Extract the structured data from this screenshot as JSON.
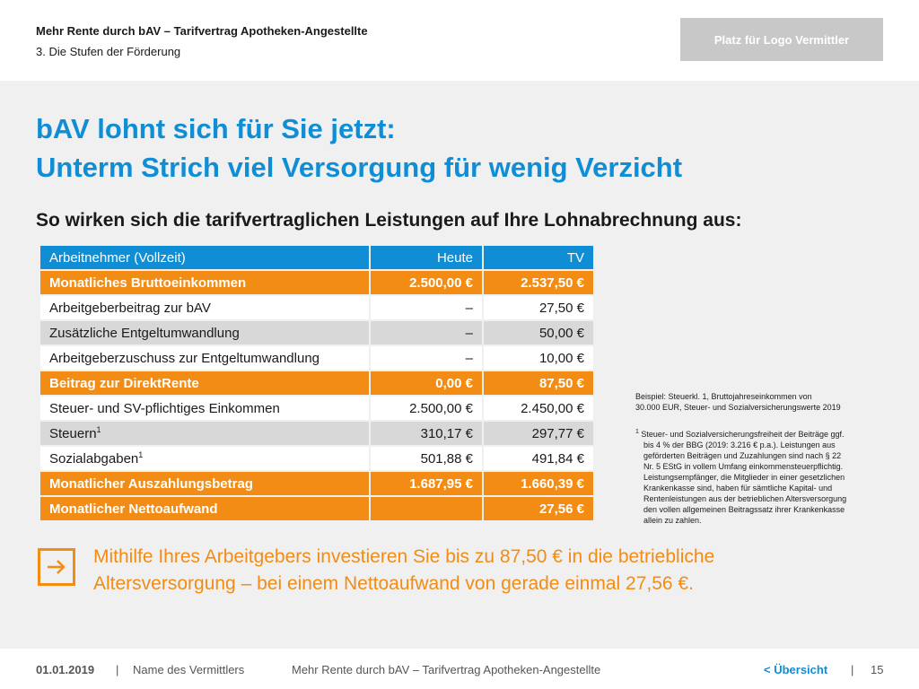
{
  "header": {
    "title": "Mehr Rente durch bAV – Tarifvertrag Apotheken-Angestellte",
    "subtitle": "3. Die Stufen der Förderung",
    "logo_placeholder": "Platz für Logo Vermittler"
  },
  "headline": {
    "line1": "bAV lohnt sich für Sie jetzt:",
    "line2": "Unterm Strich viel Versorgung für wenig Verzicht"
  },
  "subheading": "So wirken sich die tarifvertraglichen Leistungen auf Ihre Lohnabrechnung aus:",
  "table": {
    "header": [
      "Arbeitnehmer (Vollzeit)",
      "Heute",
      "TV"
    ],
    "rows": [
      {
        "label": "Monatliches Bruttoeinkommen",
        "sup": "",
        "heute": "2.500,00 €",
        "tv": "2.537,50 €",
        "style": "orange"
      },
      {
        "label": "Arbeitgeberbeitrag zur bAV",
        "sup": "",
        "heute": "–",
        "tv": "27,50 €",
        "style": "white"
      },
      {
        "label": "Zusätzliche Entgeltumwandlung",
        "sup": "",
        "heute": "–",
        "tv": "50,00 €",
        "style": "grey"
      },
      {
        "label": "Arbeitgeberzuschuss zur Entgeltumwandlung",
        "sup": "",
        "heute": "–",
        "tv": "10,00 €",
        "style": "white"
      },
      {
        "label": "Beitrag zur DirektRente",
        "sup": "",
        "heute": "0,00 €",
        "tv": "87,50 €",
        "style": "orange"
      },
      {
        "label": "Steuer- und SV-pflichtiges Einkommen",
        "sup": "",
        "heute": "2.500,00 €",
        "tv": "2.450,00 €",
        "style": "white"
      },
      {
        "label": "Steuern",
        "sup": "1",
        "heute": "310,17 €",
        "tv": "297,77 €",
        "style": "grey"
      },
      {
        "label": "Sozialabgaben",
        "sup": "1",
        "heute": "501,88 €",
        "tv": "491,84 €",
        "style": "white"
      },
      {
        "label": "Monatlicher Auszahlungsbetrag",
        "sup": "",
        "heute": "1.687,95 €",
        "tv": "1.660,39 €",
        "style": "orange"
      },
      {
        "label": "Monatlicher Nettoaufwand",
        "sup": "",
        "heute": "",
        "tv": "27,56 €",
        "style": "orange"
      }
    ]
  },
  "notes": {
    "example_line1": "Beispiel: Steuerkl. 1, Bruttojahreseinkommen von",
    "example_line2": "30.000 EUR, Steuer- und Sozialversicherungswerte 2019",
    "footnote_mark": "1",
    "footnote_lines": [
      "Steuer- und Sozialversicherungsfreiheit der Beiträge ggf.",
      "bis 4 % der BBG (2019: 3.216 € p.a.). Leistungen aus",
      "geförderten Beiträgen und Zuzahlungen sind nach § 22",
      "Nr. 5 EStG in vollem Umfang einkommensteuerpflichtig.",
      "Leistungsempfänger, die Mitglieder in einer gesetzlichen",
      "Krankenkasse sind, haben für sämtliche Kapital- und",
      "Rentenleistungen aus der betrieblichen Altersversorgung",
      "den vollen allgemeinen Beitragssatz ihrer Krankenkasse",
      "allein zu zahlen."
    ]
  },
  "callout": {
    "icon": "arrow-right-icon",
    "line1": "Mithilfe Ihres Arbeitgebers investieren Sie bis zu 87,50 € in die betriebliche",
    "line2": "Altersversorgung – bei einem Nettoaufwand von gerade einmal 27,56 €."
  },
  "footer": {
    "date": "01.01.2019",
    "separator": "|",
    "broker_name": "Name des Vermittlers",
    "doc_title": "Mehr Rente durch bAV – Tarifvertrag Apotheken-Angestellte",
    "overview_link": "< Übersicht",
    "page_number": "15"
  },
  "colors": {
    "accent_blue": "#0f8ed6",
    "accent_orange": "#f28c14",
    "row_grey": "#d8d8d8",
    "panel_bg": "#f0f0f0"
  }
}
